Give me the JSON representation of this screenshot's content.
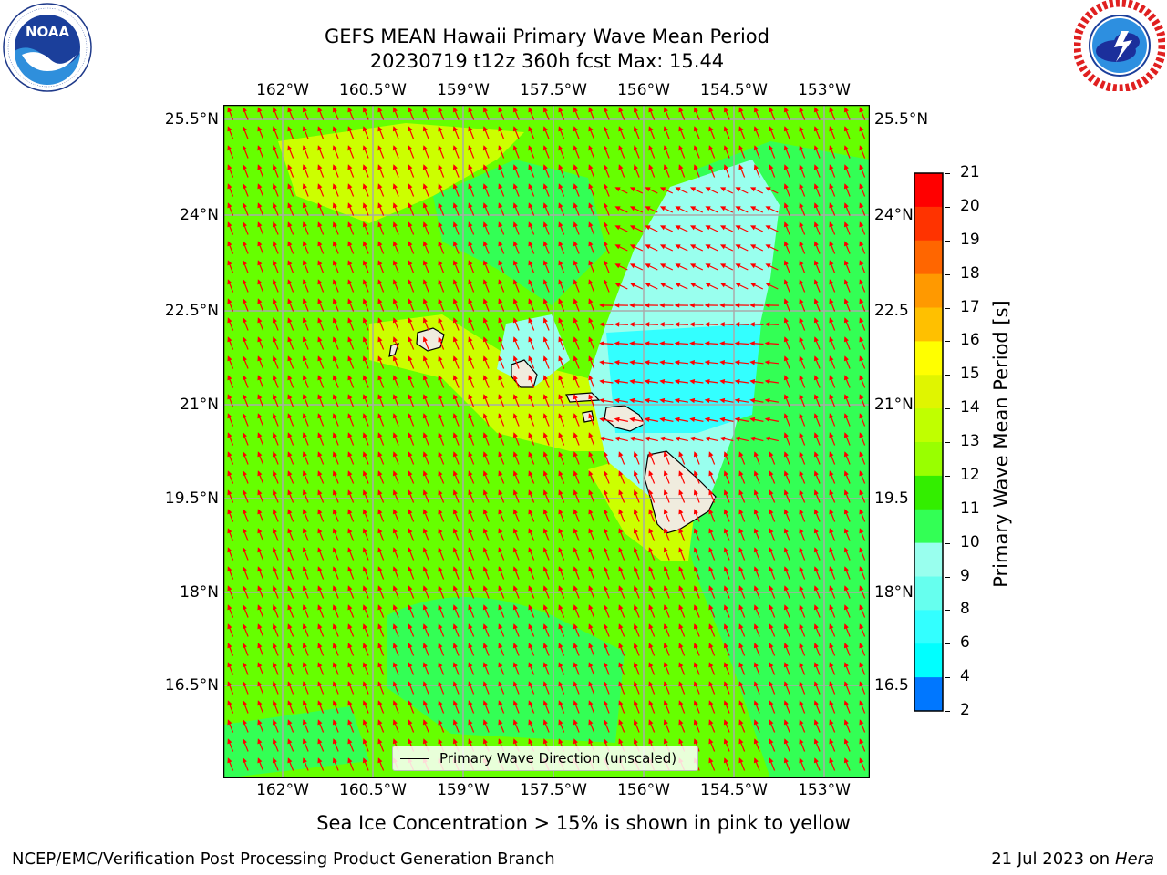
{
  "title_line1": "GEFS MEAN Hawaii Primary Wave Mean Period",
  "title_line2": "20230719 t12z 360h fcst   Max: 15.44",
  "logos": {
    "left": "NOAA",
    "right": "NATIONAL WEATHER SERVICE"
  },
  "lon_ticks": [
    "162°W",
    "160.5°W",
    "159°W",
    "157.5°W",
    "156°W",
    "154.5°W",
    "153°W"
  ],
  "lat_ticks_left": [
    "25.5°N",
    "24°N",
    "22.5°N",
    "21°N",
    "19.5°N",
    "18°N",
    "16.5°N"
  ],
  "lat_ticks_right": [
    "25.5°N",
    "24°N",
    "22.5",
    "21°N",
    "19.5",
    "18°N",
    "16.5"
  ],
  "legend": {
    "label": "Primary Wave Direction (unscaled)",
    "line_color": "#000000"
  },
  "colorbar": {
    "label": "Primary Wave Mean Period [s]",
    "ticks": [
      "21",
      "20",
      "19",
      "18",
      "17",
      "16",
      "15",
      "14",
      "13",
      "12",
      "11",
      "10",
      "9",
      "8",
      "6",
      "4",
      "2"
    ],
    "colors_top_to_bottom": [
      "#ff0000",
      "#ff3300",
      "#ff6600",
      "#ff9900",
      "#ffc000",
      "#ffff00",
      "#e0f500",
      "#c0ff00",
      "#99ff00",
      "#33ee00",
      "#33ff55",
      "#99ffee",
      "#66ffee",
      "#33ffff",
      "#00ffff",
      "#0077ff",
      "#0000ff"
    ]
  },
  "map": {
    "dominant_color": "#66ff00",
    "arrow_color": "#ff0000",
    "coast_color": "#000000",
    "land_color": "#f0ecde"
  },
  "footnote": "Sea Ice Concentration > 15% is shown in pink to yellow",
  "footer_left": "NCEP/EMC/Verification Post Processing Product Generation Branch",
  "footer_right_date": "21 Jul 2023 on ",
  "footer_right_machine": "Hera"
}
